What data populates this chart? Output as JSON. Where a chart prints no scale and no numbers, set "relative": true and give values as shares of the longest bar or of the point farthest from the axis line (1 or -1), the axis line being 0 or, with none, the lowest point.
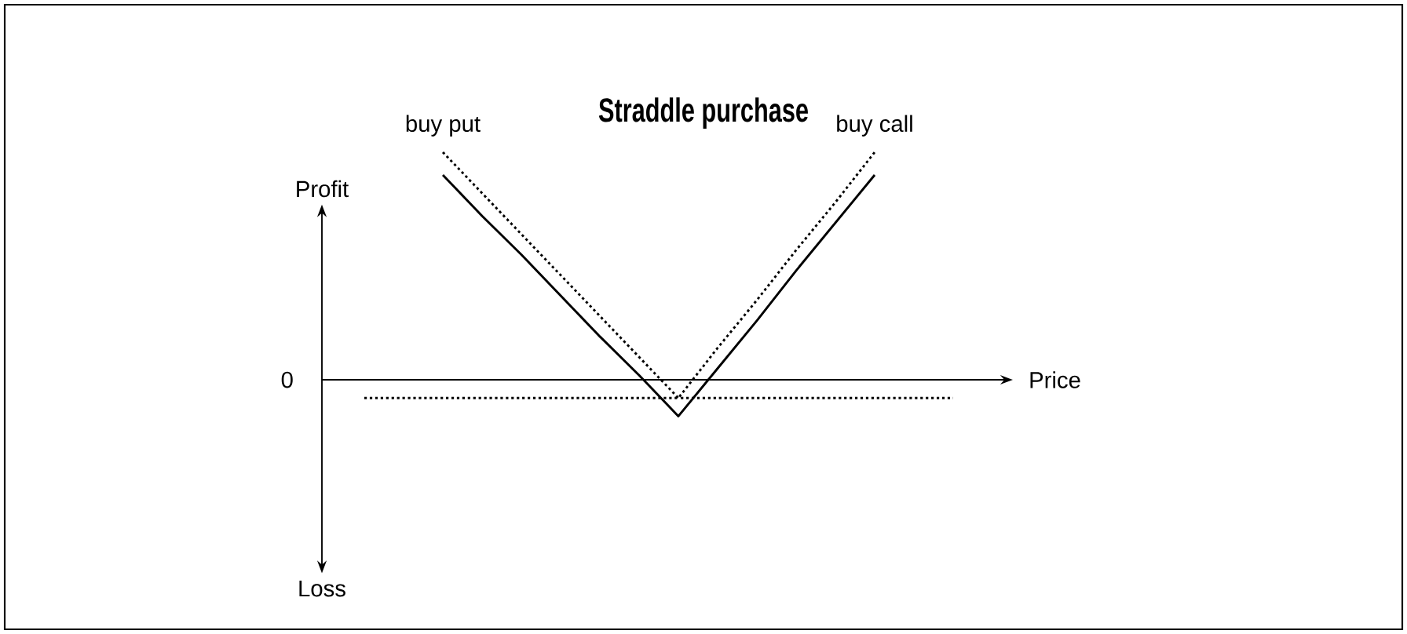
{
  "chart_data": {
    "type": "line",
    "title": "Straddle purchase",
    "xlabel": "Price",
    "ylabel": "Profit",
    "annotations": [
      "Loss",
      "0"
    ],
    "relative": true,
    "marker": "none",
    "categories": [
      null,
      null,
      null,
      null,
      null,
      null,
      null,
      null,
      null,
      null,
      null,
      null,
      null,
      null,
      null,
      null
    ],
    "series": [
      {
        "name": "buy put",
        "color": "#000000",
        "line_style": "dotted",
        "values": [
          null,
          null,
          1.0,
          0.82,
          0.64,
          0.46,
          0.28,
          0.1,
          -0.08,
          -0.08,
          -0.08,
          -0.08,
          -0.08,
          -0.08,
          -0.08,
          -0.08
        ]
      },
      {
        "name": "buy call",
        "color": "#000000",
        "line_style": "dotted",
        "values": [
          -0.08,
          -0.08,
          -0.08,
          -0.08,
          -0.08,
          -0.08,
          -0.08,
          -0.08,
          -0.08,
          0.14,
          0.35,
          0.57,
          0.78,
          1.0,
          null,
          null
        ]
      },
      {
        "color": "#000000",
        "line_style": "solid",
        "values": [
          null,
          null,
          0.9,
          0.72,
          0.55,
          0.37,
          0.19,
          0.02,
          -0.16,
          0.05,
          0.26,
          0.48,
          0.69,
          0.9,
          null,
          null
        ]
      }
    ]
  }
}
